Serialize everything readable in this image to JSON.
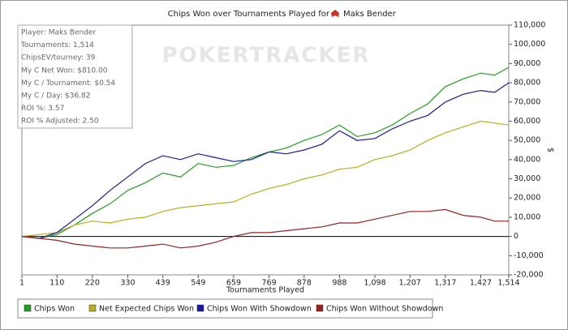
{
  "chart_data": {
    "type": "line",
    "title": "Chips Won over Tournaments Played for",
    "title_player": "Maks Bender",
    "watermark": "POKERTRACKER",
    "x_label": "Tournaments Played",
    "y_label": "$",
    "annotations": [
      "Player: Maks Bender",
      "Tournaments: 1,514",
      "ChipsEV/tourney: 39",
      "My C Net Won: $810.00",
      "My C / Tournament: $0.54",
      "My C / Day: $36.82",
      "ROI %: 3.57",
      "ROI % Adjusted: 2.50"
    ],
    "x": [
      1,
      55,
      110,
      165,
      220,
      275,
      330,
      385,
      439,
      494,
      549,
      604,
      659,
      714,
      769,
      823,
      878,
      933,
      988,
      1043,
      1098,
      1152,
      1207,
      1262,
      1317,
      1372,
      1427,
      1470,
      1514
    ],
    "series": [
      {
        "name": "Chips Won",
        "color": "#22a022",
        "values": [
          0,
          -1000,
          1000,
          6000,
          12000,
          17000,
          24000,
          28000,
          33000,
          31000,
          38000,
          36000,
          37000,
          41000,
          44000,
          46000,
          50000,
          53000,
          58000,
          52000,
          54000,
          58000,
          64000,
          69000,
          78000,
          82000,
          85000,
          84000,
          88000
        ]
      },
      {
        "name": "Net Expected Chips Won",
        "color": "#b5ae1e",
        "values": [
          0,
          1000,
          2000,
          6000,
          8000,
          7000,
          9000,
          10000,
          13000,
          15000,
          16000,
          17000,
          18000,
          22000,
          25000,
          27000,
          30000,
          32000,
          35000,
          36000,
          40000,
          42000,
          45000,
          50000,
          54000,
          57000,
          60000,
          59000,
          58000
        ]
      },
      {
        "name": "Chips Won With Showdown",
        "color": "#1a1a9e",
        "values": [
          0,
          -1000,
          2000,
          9000,
          16000,
          24000,
          31000,
          38000,
          42000,
          40000,
          43000,
          41000,
          39000,
          40000,
          44000,
          43000,
          45000,
          48000,
          55000,
          50000,
          51000,
          56000,
          60000,
          63000,
          70000,
          74000,
          76000,
          75000,
          80000
        ]
      },
      {
        "name": "Chips Won Without Showdown",
        "color": "#9a2222",
        "values": [
          0,
          -1000,
          -2000,
          -4000,
          -5000,
          -6000,
          -6000,
          -5000,
          -4000,
          -6000,
          -5000,
          -3000,
          0,
          2000,
          2000,
          3000,
          4000,
          5000,
          7000,
          7000,
          9000,
          11000,
          13000,
          13000,
          14000,
          11000,
          10000,
          8000,
          8000
        ]
      }
    ],
    "xlim": [
      1,
      1514
    ],
    "xticks": [
      1,
      110,
      220,
      330,
      439,
      549,
      659,
      769,
      878,
      988,
      {
        "value": 1098,
        "label": "1,098"
      },
      {
        "value": 1207,
        "label": "1,207"
      },
      {
        "value": 1317,
        "label": "1,317"
      },
      {
        "value": 1427,
        "label": "1,427"
      },
      {
        "value": 1514,
        "label": "1,514"
      }
    ],
    "ylim": [
      -20000,
      110000
    ],
    "yticks": [
      {
        "value": -20000,
        "label": "-20,000"
      },
      {
        "value": -10000,
        "label": "-10,000"
      },
      0,
      {
        "value": 10000,
        "label": "10,000"
      },
      {
        "value": 20000,
        "label": "20,000"
      },
      {
        "value": 30000,
        "label": "30,000"
      },
      {
        "value": 40000,
        "label": "40,000"
      },
      {
        "value": 50000,
        "label": "50,000"
      },
      {
        "value": 60000,
        "label": "60,000"
      },
      {
        "value": 70000,
        "label": "70,000"
      },
      {
        "value": 80000,
        "label": "80,000"
      },
      {
        "value": 90000,
        "label": "90,000"
      },
      {
        "value": 100000,
        "label": "100,000"
      },
      {
        "value": 110000,
        "label": "110,000"
      }
    ],
    "zero_line": true,
    "legend": "bottom"
  }
}
